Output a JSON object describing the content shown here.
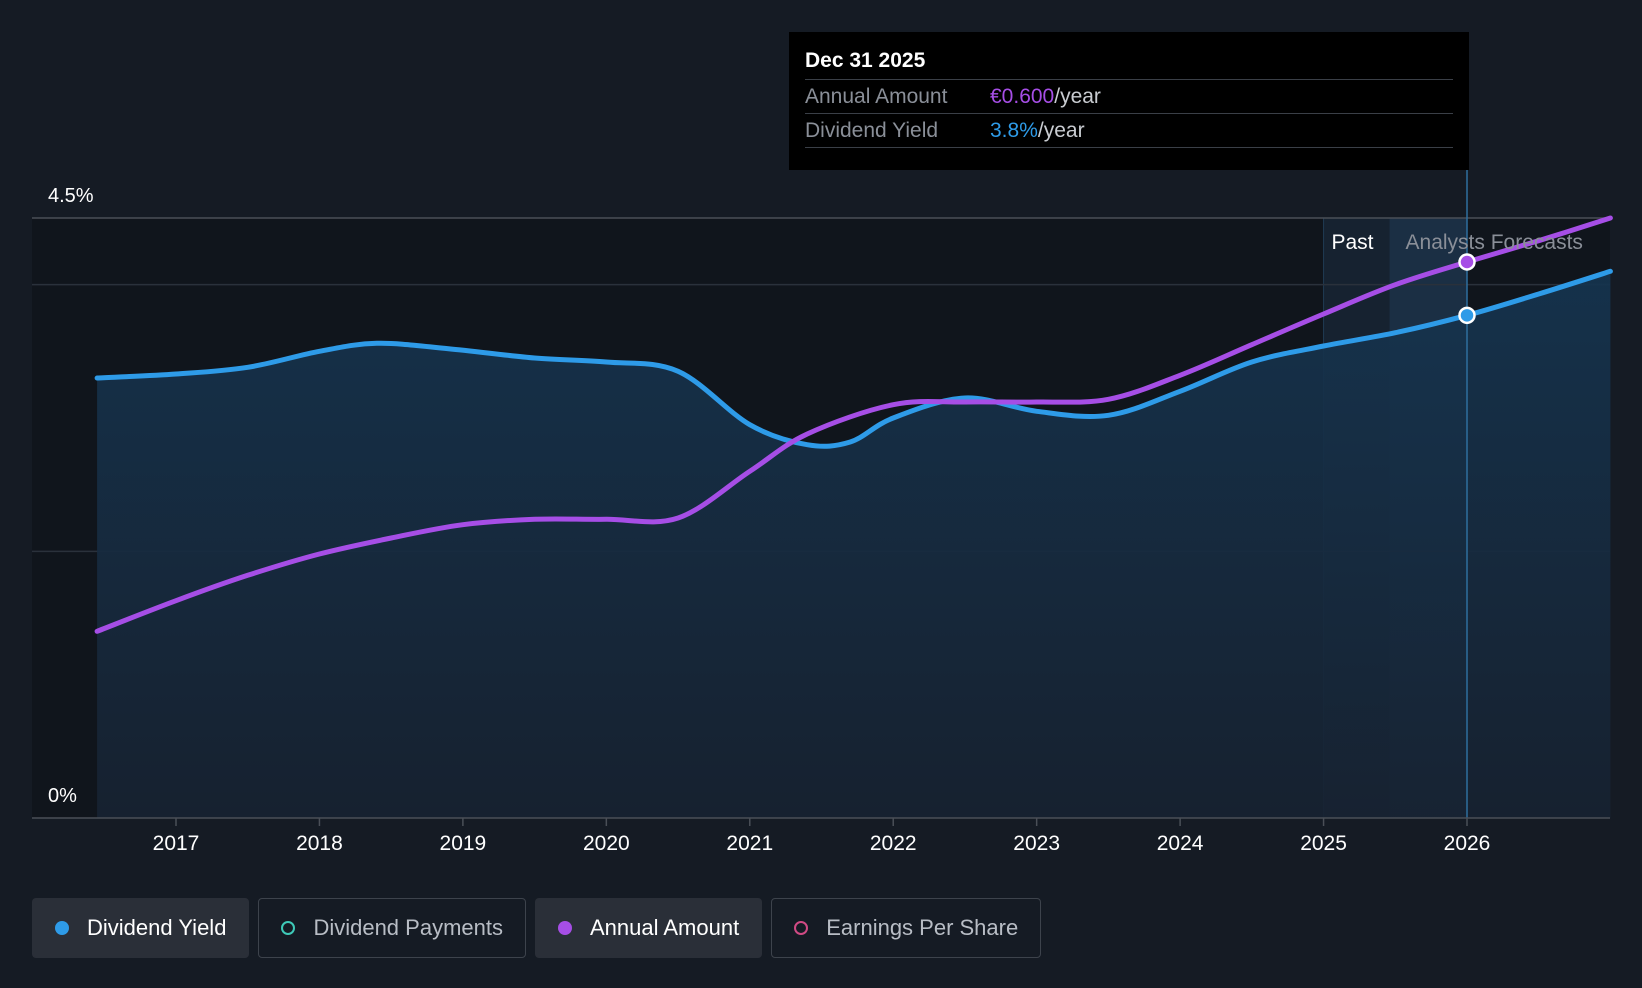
{
  "chart_data": {
    "type": "line",
    "x_start": 2016.45,
    "x_end": 2027.0,
    "x_ticks": [
      2017,
      2018,
      2019,
      2020,
      2021,
      2022,
      2023,
      2024,
      2025,
      2026
    ],
    "y_axis": {
      "ylim": [
        0,
        4.5
      ],
      "labels": [
        {
          "value": 0,
          "text": "0%"
        },
        {
          "value": 4.5,
          "text": "4.5%"
        }
      ],
      "gridlines": [
        2.0,
        4.0,
        4.5
      ]
    },
    "series": [
      {
        "name": "Dividend Yield",
        "color": "#2e9be8",
        "fill": true,
        "x": [
          2016.45,
          2017.0,
          2017.5,
          2018.0,
          2018.4,
          2018.9,
          2019.5,
          2020.0,
          2020.5,
          2021.0,
          2021.4,
          2021.7,
          2022.0,
          2022.5,
          2023.0,
          2023.5,
          2024.0,
          2024.5,
          2025.0,
          2025.5,
          2026.0,
          2026.5,
          2027.0
        ],
        "values": [
          3.3,
          3.33,
          3.38,
          3.5,
          3.56,
          3.52,
          3.45,
          3.42,
          3.35,
          2.95,
          2.8,
          2.82,
          3.0,
          3.15,
          3.05,
          3.02,
          3.2,
          3.42,
          3.54,
          3.64,
          3.77,
          3.93,
          4.1
        ]
      },
      {
        "name": "Annual Amount",
        "color": "#a64ee6",
        "fill": false,
        "x": [
          2016.45,
          2017.0,
          2017.5,
          2018.0,
          2018.5,
          2019.0,
          2019.5,
          2020.0,
          2020.5,
          2021.0,
          2021.4,
          2022.0,
          2022.5,
          2023.0,
          2023.5,
          2024.0,
          2024.5,
          2025.0,
          2025.5,
          2026.0,
          2026.5,
          2027.0
        ],
        "values": [
          1.4,
          1.63,
          1.82,
          1.98,
          2.1,
          2.2,
          2.24,
          2.24,
          2.25,
          2.6,
          2.88,
          3.1,
          3.12,
          3.12,
          3.14,
          3.32,
          3.55,
          3.78,
          4.0,
          4.17,
          4.33,
          4.5
        ]
      }
    ],
    "past_region": {
      "x_start": 2025.0,
      "x_end": 2025.46,
      "label": "Past"
    },
    "forecast_region": {
      "x_start": 2025.46,
      "x_end": 2026.0,
      "label": "Analysts Forecasts"
    },
    "cursor": {
      "x": 2026.0,
      "points": [
        {
          "series": "Annual Amount",
          "value": 4.17
        },
        {
          "series": "Dividend Yield",
          "value": 3.77
        }
      ]
    }
  },
  "tooltip": {
    "date": "Dec 31 2025",
    "rows": [
      {
        "label": "Annual Amount",
        "value": "€0.600",
        "unit": "/year"
      },
      {
        "label": "Dividend Yield",
        "value": "3.8%",
        "unit": "/year"
      }
    ]
  },
  "legend": [
    {
      "label": "Dividend Yield",
      "color": "#2e9be8",
      "filled": true,
      "active": true
    },
    {
      "label": "Dividend Payments",
      "color": "#3ec9b8",
      "filled": false,
      "active": false
    },
    {
      "label": "Annual Amount",
      "color": "#a64ee6",
      "filled": true,
      "active": true
    },
    {
      "label": "Earnings Per Share",
      "color": "#d04a84",
      "filled": false,
      "active": false
    }
  ]
}
